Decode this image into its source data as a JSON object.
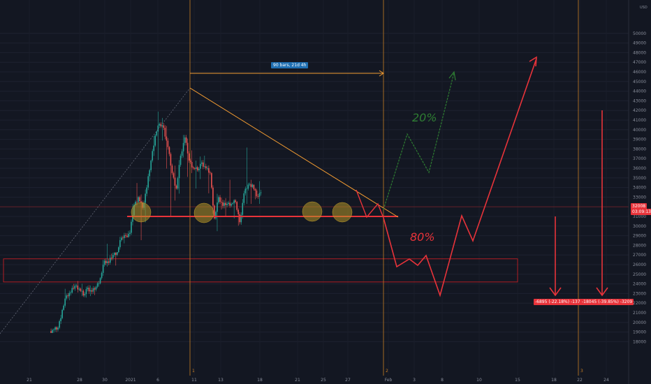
{
  "chart_data": {
    "type": "candlestick",
    "instrument_hint": "USD",
    "yaxis": {
      "unit_label": "USD",
      "ticks": [
        18000,
        19000,
        20000,
        21000,
        22000,
        23000,
        24000,
        25000,
        26000,
        27000,
        28000,
        29000,
        30000,
        31000,
        32000,
        33000,
        34000,
        35000,
        36000,
        37000,
        38000,
        39000,
        40000,
        41000,
        42000,
        43000,
        44000,
        45000,
        46000,
        47000,
        48000,
        49000,
        50000
      ],
      "range": [
        17300,
        50000
      ]
    },
    "xaxis": {
      "ticks": [
        "21",
        "28",
        "30",
        "2021",
        "6",
        "11",
        "13",
        "18",
        "21",
        "25",
        "27",
        "Feb",
        "3",
        "8",
        "10",
        "15",
        "18",
        "22",
        "24"
      ]
    },
    "current_price_label": "32008",
    "countdown_label": "03:09:13",
    "measure_label": "90 bars, 21d 4h",
    "scenario_labels": [
      "20%",
      "80%"
    ],
    "measurement_labels": [
      "-6895 (-22.18%) -1379",
      "-18045 (-39.85%) -3209"
    ],
    "vertical_marker_labels": [
      "1",
      "2",
      "3"
    ],
    "support_level": 31000,
    "resistance_zone": [
      24200,
      26600
    ],
    "price_history": [
      {
        "d": "Dec 14",
        "o": 19100,
        "h": 19400,
        "l": 18900,
        "c": 19250
      },
      {
        "d": "Dec 15",
        "o": 19250,
        "h": 19600,
        "l": 19000,
        "c": 19450
      },
      {
        "d": "Dec 16",
        "o": 19450,
        "h": 21500,
        "l": 19300,
        "c": 21300
      },
      {
        "d": "Dec 17",
        "o": 21300,
        "h": 23700,
        "l": 21200,
        "c": 22800
      },
      {
        "d": "Dec 18",
        "o": 22800,
        "h": 23300,
        "l": 22300,
        "c": 23100
      },
      {
        "d": "Dec 19",
        "o": 23100,
        "h": 24200,
        "l": 23000,
        "c": 23800
      },
      {
        "d": "Dec 20",
        "o": 23800,
        "h": 24300,
        "l": 23100,
        "c": 23500
      },
      {
        "d": "Dec 21",
        "o": 23500,
        "h": 24100,
        "l": 22400,
        "c": 22800
      },
      {
        "d": "Dec 22",
        "o": 22800,
        "h": 23800,
        "l": 22500,
        "c": 23600
      },
      {
        "d": "Dec 23",
        "o": 23600,
        "h": 24100,
        "l": 22700,
        "c": 23200
      },
      {
        "d": "Dec 24",
        "o": 23200,
        "h": 23800,
        "l": 22700,
        "c": 23700
      },
      {
        "d": "Dec 25",
        "o": 23700,
        "h": 24700,
        "l": 23500,
        "c": 24600
      },
      {
        "d": "Dec 26",
        "o": 24600,
        "h": 26800,
        "l": 24400,
        "c": 26400
      },
      {
        "d": "Dec 27",
        "o": 26400,
        "h": 28200,
        "l": 25800,
        "c": 26200
      },
      {
        "d": "Dec 28",
        "o": 26200,
        "h": 27400,
        "l": 26000,
        "c": 27000
      },
      {
        "d": "Dec 29",
        "o": 27000,
        "h": 27300,
        "l": 25900,
        "c": 27300
      },
      {
        "d": "Dec 30",
        "o": 27300,
        "h": 29000,
        "l": 27200,
        "c": 28800
      },
      {
        "d": "Dec 31",
        "o": 28800,
        "h": 29300,
        "l": 28200,
        "c": 29000
      },
      {
        "d": "Jan 01",
        "o": 29000,
        "h": 29600,
        "l": 28800,
        "c": 29300
      },
      {
        "d": "Jan 02",
        "o": 29300,
        "h": 33300,
        "l": 29000,
        "c": 32200
      },
      {
        "d": "Jan 03",
        "o": 32200,
        "h": 34800,
        "l": 32000,
        "c": 33000
      },
      {
        "d": "Jan 04",
        "o": 33000,
        "h": 33600,
        "l": 28100,
        "c": 31900
      },
      {
        "d": "Jan 05",
        "o": 31900,
        "h": 34400,
        "l": 29900,
        "c": 34000
      },
      {
        "d": "Jan 06",
        "o": 34000,
        "h": 36900,
        "l": 33500,
        "c": 36800
      },
      {
        "d": "Jan 07",
        "o": 36800,
        "h": 40300,
        "l": 36400,
        "c": 39400
      },
      {
        "d": "Jan 08",
        "o": 39400,
        "h": 41900,
        "l": 36600,
        "c": 40600
      },
      {
        "d": "Jan 09",
        "o": 40600,
        "h": 41300,
        "l": 38800,
        "c": 40200
      },
      {
        "d": "Jan 10",
        "o": 40200,
        "h": 41300,
        "l": 35300,
        "c": 38200
      },
      {
        "d": "Jan 11",
        "o": 38200,
        "h": 38300,
        "l": 30300,
        "c": 35500
      },
      {
        "d": "Jan 12",
        "o": 35500,
        "h": 36600,
        "l": 32500,
        "c": 33900
      },
      {
        "d": "Jan 13",
        "o": 33900,
        "h": 37700,
        "l": 32400,
        "c": 37300
      },
      {
        "d": "Jan 14",
        "o": 37300,
        "h": 40000,
        "l": 36700,
        "c": 39200
      },
      {
        "d": "Jan 15",
        "o": 39200,
        "h": 39600,
        "l": 34400,
        "c": 36800
      },
      {
        "d": "Jan 16",
        "o": 36800,
        "h": 37900,
        "l": 35500,
        "c": 36000
      },
      {
        "d": "Jan 17",
        "o": 36000,
        "h": 36800,
        "l": 33900,
        "c": 35800
      },
      {
        "d": "Jan 18",
        "o": 35800,
        "h": 37300,
        "l": 34800,
        "c": 36600
      },
      {
        "d": "Jan 19",
        "o": 36600,
        "h": 37700,
        "l": 35800,
        "c": 36000
      },
      {
        "d": "Jan 20",
        "o": 36000,
        "h": 36300,
        "l": 33400,
        "c": 35500
      },
      {
        "d": "Jan 21",
        "o": 35500,
        "h": 35600,
        "l": 30100,
        "c": 30800
      },
      {
        "d": "Jan 22",
        "o": 30800,
        "h": 33800,
        "l": 28900,
        "c": 33000
      },
      {
        "d": "Jan 23",
        "o": 33000,
        "h": 33400,
        "l": 31400,
        "c": 32100
      },
      {
        "d": "Jan 24",
        "o": 32100,
        "h": 32900,
        "l": 30900,
        "c": 32300
      },
      {
        "d": "Jan 25",
        "o": 32300,
        "h": 34800,
        "l": 31900,
        "c": 32300
      },
      {
        "d": "Jan 26",
        "o": 32300,
        "h": 32800,
        "l": 30800,
        "c": 32500
      },
      {
        "d": "Jan 27",
        "o": 32500,
        "h": 32600,
        "l": 29300,
        "c": 30400
      },
      {
        "d": "Jan 28",
        "o": 30400,
        "h": 33800,
        "l": 30000,
        "c": 33400
      },
      {
        "d": "Jan 29",
        "o": 33400,
        "h": 38500,
        "l": 31900,
        "c": 34300
      },
      {
        "d": "Jan 30",
        "o": 34300,
        "h": 34800,
        "l": 32300,
        "c": 34300
      },
      {
        "d": "Jan 31",
        "o": 34300,
        "h": 34300,
        "l": 32300,
        "c": 33100
      },
      {
        "d": "Feb 01",
        "o": 33100,
        "h": 34700,
        "l": 32300,
        "c": 33500
      }
    ],
    "scenarios": [
      {
        "name": "bullish",
        "probability_label": "20%",
        "color": "#2e7d32",
        "path": [
          [
            "Jan 29",
            32000
          ],
          [
            "Jan 31",
            35700
          ],
          [
            "Feb 02",
            38300
          ],
          [
            "Feb 04",
            35000
          ],
          [
            "Feb 06",
            43800
          ]
        ]
      },
      {
        "name": "bearish",
        "probability_label": "80%",
        "color": "#e8333a",
        "path": [
          [
            "Jan 27",
            32000
          ],
          [
            "Jan 29",
            30800
          ],
          [
            "Jan 30",
            32000
          ],
          [
            "Feb 01",
            31200
          ],
          [
            "Feb 02",
            29000
          ],
          [
            "Feb 03",
            27000
          ],
          [
            "Feb 04",
            27500
          ],
          [
            "Feb 05",
            27000
          ],
          [
            "Feb 06",
            27700
          ],
          [
            "Feb 08",
            24200
          ],
          [
            "Feb 10",
            31200
          ],
          [
            "Feb 11",
            29000
          ],
          [
            "Feb 17",
            44900
          ]
        ]
      }
    ]
  }
}
